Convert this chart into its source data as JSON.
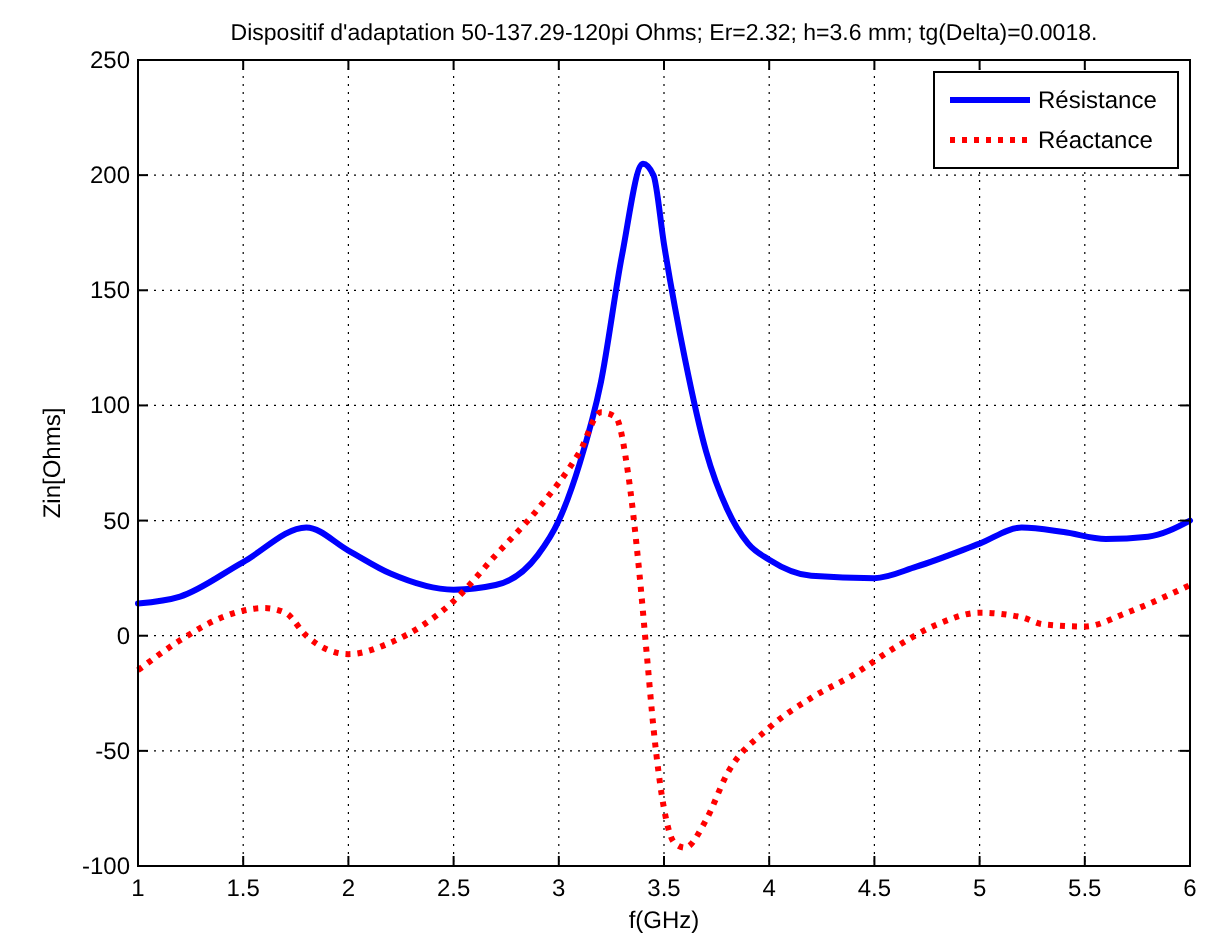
{
  "chart_data": {
    "type": "line",
    "title": "Dispositif d'adaptation 50-137.29-120pi Ohms; Er=2.32; h=3.6 mm; tg(Delta)=0.0018.",
    "xlabel": "f(GHz)",
    "ylabel": "Zin[Ohms]",
    "xlim": [
      1,
      6
    ],
    "ylim": [
      -100,
      250
    ],
    "xticks": [
      1,
      1.5,
      2,
      2.5,
      3,
      3.5,
      4,
      4.5,
      5,
      5.5,
      6
    ],
    "yticks": [
      -100,
      -50,
      0,
      50,
      100,
      150,
      200,
      250
    ],
    "grid": true,
    "legend": "top right",
    "series": [
      {
        "name": "Résistance",
        "color": "#0000ff",
        "line_style": "solid",
        "x": [
          1,
          1.2,
          1.5,
          1.8,
          2,
          2.2,
          2.5,
          2.7,
          2.9,
          3,
          3.1,
          3.2,
          3.3,
          3.4,
          3.45,
          3.5,
          3.6,
          3.7,
          3.8,
          3.9,
          4,
          4.2,
          4.5,
          4.7,
          5,
          5.2,
          5.4,
          5.6,
          5.8,
          6
        ],
        "values": [
          14,
          17,
          32,
          47,
          37,
          27,
          20,
          22,
          35,
          50,
          75,
          110,
          165,
          205,
          200,
          170,
          120,
          80,
          55,
          40,
          33,
          26,
          25,
          30,
          40,
          47,
          45,
          42,
          43,
          50
        ]
      },
      {
        "name": "Réactance",
        "color": "#ff0000",
        "line_style": "dotted",
        "x": [
          1,
          1.2,
          1.4,
          1.6,
          1.7,
          1.8,
          2,
          2.2,
          2.5,
          2.7,
          2.9,
          3.1,
          3.2,
          3.27,
          3.33,
          3.38,
          3.42,
          3.45,
          3.5,
          3.55,
          3.6,
          3.7,
          3.8,
          4,
          4.2,
          4.4,
          4.6,
          4.8,
          5,
          5.2,
          5.3,
          5.5,
          5.7,
          6
        ],
        "values": [
          -15,
          -2,
          8,
          12,
          10,
          0,
          -8,
          -3,
          15,
          35,
          55,
          80,
          97,
          95,
          70,
          30,
          -10,
          -40,
          -75,
          -90,
          -92,
          -80,
          -60,
          -40,
          -27,
          -17,
          -5,
          5,
          10,
          8,
          5,
          4,
          10,
          22
        ]
      }
    ]
  }
}
